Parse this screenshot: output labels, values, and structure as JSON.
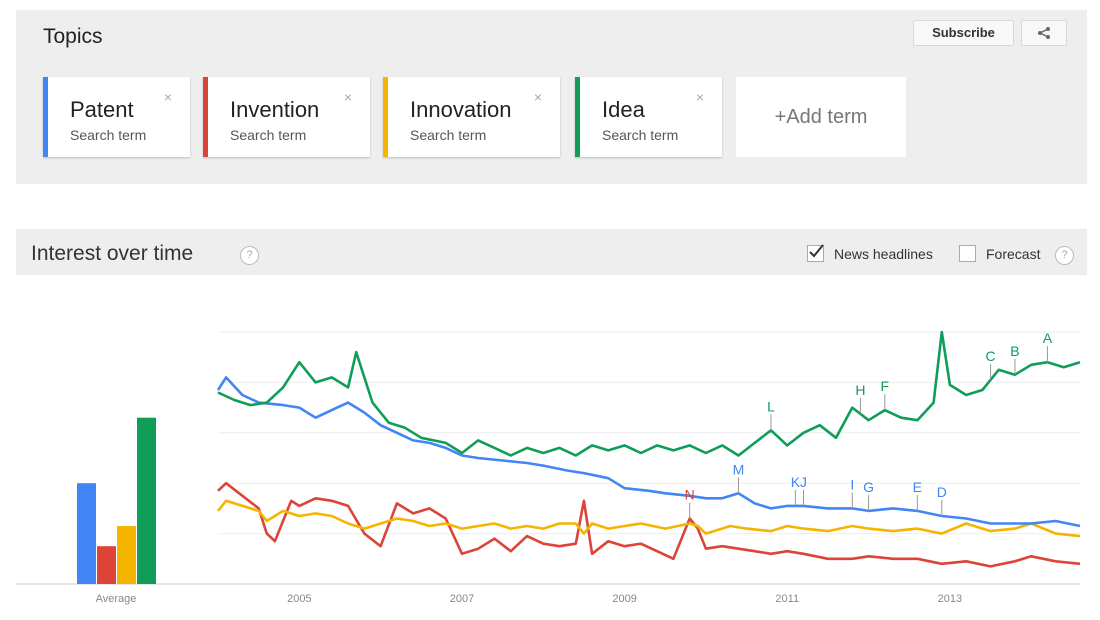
{
  "topics": {
    "title": "Topics",
    "subscribe_label": "Subscribe",
    "close_glyph": "×",
    "add_term_label": "+Add term",
    "terms": [
      {
        "name": "Patent",
        "type": "Search term",
        "color": "#4285f4"
      },
      {
        "name": "Invention",
        "type": "Search term",
        "color": "#db4437"
      },
      {
        "name": "Innovation",
        "type": "Search term",
        "color": "#f4b400"
      },
      {
        "name": "Idea",
        "type": "Search term",
        "color": "#0f9d58"
      }
    ]
  },
  "interest": {
    "title": "Interest over time",
    "help_glyph": "?",
    "news_headlines_label": "News headlines",
    "news_headlines_checked": true,
    "forecast_label": "Forecast",
    "forecast_checked": false
  },
  "chart_data": {
    "type": "line",
    "average_label": "Average",
    "averages": [
      {
        "series": "Patent",
        "value": 40
      },
      {
        "series": "Invention",
        "value": 15
      },
      {
        "series": "Innovation",
        "value": 23
      },
      {
        "series": "Idea",
        "value": 66
      }
    ],
    "x_ticks": [
      "2005",
      "2007",
      "2009",
      "2011",
      "2013"
    ],
    "x_range": [
      2004.0,
      2014.6
    ],
    "ylim": [
      0,
      100
    ],
    "series": [
      {
        "name": "Patent",
        "color": "#4285f4",
        "points": [
          [
            2004.0,
            77
          ],
          [
            2004.1,
            82
          ],
          [
            2004.3,
            75
          ],
          [
            2004.5,
            72
          ],
          [
            2004.8,
            71
          ],
          [
            2005.0,
            70
          ],
          [
            2005.2,
            66
          ],
          [
            2005.4,
            69
          ],
          [
            2005.6,
            72
          ],
          [
            2005.8,
            68
          ],
          [
            2006.0,
            63
          ],
          [
            2006.2,
            60
          ],
          [
            2006.4,
            57
          ],
          [
            2006.6,
            56
          ],
          [
            2006.8,
            54
          ],
          [
            2007.0,
            51
          ],
          [
            2007.2,
            50
          ],
          [
            2007.5,
            49
          ],
          [
            2007.8,
            48
          ],
          [
            2008.0,
            47
          ],
          [
            2008.3,
            45
          ],
          [
            2008.5,
            44
          ],
          [
            2008.8,
            42
          ],
          [
            2009.0,
            38
          ],
          [
            2009.3,
            37
          ],
          [
            2009.5,
            36
          ],
          [
            2009.8,
            35
          ],
          [
            2010.0,
            34
          ],
          [
            2010.2,
            34
          ],
          [
            2010.4,
            36
          ],
          [
            2010.6,
            32
          ],
          [
            2010.8,
            30
          ],
          [
            2011.0,
            31
          ],
          [
            2011.2,
            31
          ],
          [
            2011.5,
            30
          ],
          [
            2011.8,
            30
          ],
          [
            2012.0,
            29
          ],
          [
            2012.3,
            30
          ],
          [
            2012.6,
            29
          ],
          [
            2012.9,
            27
          ],
          [
            2013.2,
            26
          ],
          [
            2013.5,
            24
          ],
          [
            2013.8,
            24
          ],
          [
            2014.0,
            24
          ],
          [
            2014.3,
            25
          ],
          [
            2014.6,
            23
          ]
        ]
      },
      {
        "name": "Invention",
        "color": "#db4437",
        "points": [
          [
            2004.0,
            37
          ],
          [
            2004.1,
            40
          ],
          [
            2004.3,
            35
          ],
          [
            2004.5,
            30
          ],
          [
            2004.6,
            20
          ],
          [
            2004.7,
            17
          ],
          [
            2004.9,
            33
          ],
          [
            2005.0,
            31
          ],
          [
            2005.2,
            34
          ],
          [
            2005.4,
            33
          ],
          [
            2005.6,
            31
          ],
          [
            2005.8,
            20
          ],
          [
            2006.0,
            15
          ],
          [
            2006.2,
            32
          ],
          [
            2006.4,
            28
          ],
          [
            2006.6,
            30
          ],
          [
            2006.8,
            26
          ],
          [
            2007.0,
            12
          ],
          [
            2007.2,
            14
          ],
          [
            2007.4,
            18
          ],
          [
            2007.6,
            13
          ],
          [
            2007.8,
            19
          ],
          [
            2008.0,
            16
          ],
          [
            2008.2,
            15
          ],
          [
            2008.4,
            16
          ],
          [
            2008.5,
            33
          ],
          [
            2008.6,
            12
          ],
          [
            2008.8,
            17
          ],
          [
            2009.0,
            15
          ],
          [
            2009.2,
            16
          ],
          [
            2009.4,
            13
          ],
          [
            2009.6,
            10
          ],
          [
            2009.8,
            26
          ],
          [
            2009.9,
            22
          ],
          [
            2010.0,
            14
          ],
          [
            2010.2,
            15
          ],
          [
            2010.4,
            14
          ],
          [
            2010.6,
            13
          ],
          [
            2010.8,
            12
          ],
          [
            2011.0,
            13
          ],
          [
            2011.2,
            12
          ],
          [
            2011.5,
            10
          ],
          [
            2011.8,
            10
          ],
          [
            2012.0,
            11
          ],
          [
            2012.3,
            10
          ],
          [
            2012.6,
            10
          ],
          [
            2012.9,
            8
          ],
          [
            2013.2,
            9
          ],
          [
            2013.5,
            7
          ],
          [
            2013.8,
            9
          ],
          [
            2014.0,
            11
          ],
          [
            2014.3,
            9
          ],
          [
            2014.6,
            8
          ]
        ]
      },
      {
        "name": "Innovation",
        "color": "#f4b400",
        "points": [
          [
            2004.0,
            29
          ],
          [
            2004.1,
            33
          ],
          [
            2004.3,
            31
          ],
          [
            2004.5,
            29
          ],
          [
            2004.6,
            25
          ],
          [
            2004.8,
            29
          ],
          [
            2005.0,
            27
          ],
          [
            2005.2,
            28
          ],
          [
            2005.4,
            27
          ],
          [
            2005.6,
            24
          ],
          [
            2005.8,
            22
          ],
          [
            2006.0,
            24
          ],
          [
            2006.2,
            26
          ],
          [
            2006.4,
            25
          ],
          [
            2006.6,
            23
          ],
          [
            2006.8,
            24
          ],
          [
            2007.0,
            22
          ],
          [
            2007.2,
            23
          ],
          [
            2007.4,
            24
          ],
          [
            2007.6,
            22
          ],
          [
            2007.8,
            23
          ],
          [
            2008.0,
            22
          ],
          [
            2008.2,
            24
          ],
          [
            2008.4,
            24
          ],
          [
            2008.5,
            20
          ],
          [
            2008.6,
            24
          ],
          [
            2008.8,
            22
          ],
          [
            2009.0,
            23
          ],
          [
            2009.2,
            24
          ],
          [
            2009.5,
            22
          ],
          [
            2009.8,
            24
          ],
          [
            2009.9,
            23
          ],
          [
            2010.0,
            20
          ],
          [
            2010.3,
            23
          ],
          [
            2010.5,
            22
          ],
          [
            2010.8,
            21
          ],
          [
            2011.0,
            23
          ],
          [
            2011.2,
            22
          ],
          [
            2011.5,
            21
          ],
          [
            2011.8,
            23
          ],
          [
            2012.0,
            22
          ],
          [
            2012.3,
            21
          ],
          [
            2012.6,
            22
          ],
          [
            2012.9,
            20
          ],
          [
            2013.2,
            24
          ],
          [
            2013.5,
            21
          ],
          [
            2013.8,
            22
          ],
          [
            2014.0,
            24
          ],
          [
            2014.3,
            20
          ],
          [
            2014.6,
            19
          ]
        ]
      },
      {
        "name": "Idea",
        "color": "#0f9d58",
        "points": [
          [
            2004.0,
            76
          ],
          [
            2004.2,
            73
          ],
          [
            2004.4,
            71
          ],
          [
            2004.6,
            72
          ],
          [
            2004.8,
            78
          ],
          [
            2005.0,
            88
          ],
          [
            2005.2,
            80
          ],
          [
            2005.4,
            82
          ],
          [
            2005.6,
            78
          ],
          [
            2005.7,
            92
          ],
          [
            2005.9,
            72
          ],
          [
            2006.1,
            64
          ],
          [
            2006.3,
            62
          ],
          [
            2006.5,
            58
          ],
          [
            2006.8,
            56
          ],
          [
            2007.0,
            52
          ],
          [
            2007.2,
            57
          ],
          [
            2007.4,
            54
          ],
          [
            2007.6,
            51
          ],
          [
            2007.8,
            54
          ],
          [
            2008.0,
            52
          ],
          [
            2008.2,
            54
          ],
          [
            2008.4,
            51
          ],
          [
            2008.6,
            55
          ],
          [
            2008.8,
            53
          ],
          [
            2009.0,
            55
          ],
          [
            2009.2,
            52
          ],
          [
            2009.4,
            55
          ],
          [
            2009.6,
            53
          ],
          [
            2009.8,
            55
          ],
          [
            2010.0,
            52
          ],
          [
            2010.2,
            55
          ],
          [
            2010.4,
            51
          ],
          [
            2010.6,
            56
          ],
          [
            2010.8,
            61
          ],
          [
            2011.0,
            55
          ],
          [
            2011.2,
            60
          ],
          [
            2011.4,
            63
          ],
          [
            2011.6,
            58
          ],
          [
            2011.8,
            70
          ],
          [
            2012.0,
            65
          ],
          [
            2012.2,
            69
          ],
          [
            2012.4,
            66
          ],
          [
            2012.6,
            65
          ],
          [
            2012.8,
            72
          ],
          [
            2012.9,
            100
          ],
          [
            2013.0,
            79
          ],
          [
            2013.2,
            75
          ],
          [
            2013.4,
            77
          ],
          [
            2013.6,
            85
          ],
          [
            2013.8,
            83
          ],
          [
            2014.0,
            87
          ],
          [
            2014.2,
            88
          ],
          [
            2014.4,
            86
          ],
          [
            2014.6,
            88
          ]
        ]
      }
    ],
    "events": [
      {
        "label": "A",
        "series": "Idea",
        "x": 2014.2,
        "color": "#0f9d58"
      },
      {
        "label": "B",
        "series": "Idea",
        "x": 2013.8,
        "color": "#0f9d58"
      },
      {
        "label": "C",
        "series": "Idea",
        "x": 2013.5,
        "color": "#0f9d58"
      },
      {
        "label": "F",
        "series": "Idea",
        "x": 2012.2,
        "color": "#0f9d58"
      },
      {
        "label": "H",
        "series": "Idea",
        "x": 2011.9,
        "color": "#0f9d58"
      },
      {
        "label": "L",
        "series": "Idea",
        "x": 2010.8,
        "color": "#0f9d58"
      },
      {
        "label": "D",
        "series": "Patent",
        "x": 2012.9,
        "color": "#4285f4"
      },
      {
        "label": "E",
        "series": "Patent",
        "x": 2012.6,
        "color": "#4285f4"
      },
      {
        "label": "G",
        "series": "Patent",
        "x": 2012.0,
        "color": "#4285f4"
      },
      {
        "label": "I",
        "series": "Patent",
        "x": 2011.8,
        "color": "#4285f4"
      },
      {
        "label": "J",
        "series": "Patent",
        "x": 2011.2,
        "color": "#4285f4"
      },
      {
        "label": "K",
        "series": "Patent",
        "x": 2011.1,
        "color": "#4285f4"
      },
      {
        "label": "M",
        "series": "Patent",
        "x": 2010.4,
        "color": "#4285f4"
      },
      {
        "label": "N",
        "series": "Invention",
        "x": 2009.8,
        "color": "#db4437"
      }
    ]
  }
}
